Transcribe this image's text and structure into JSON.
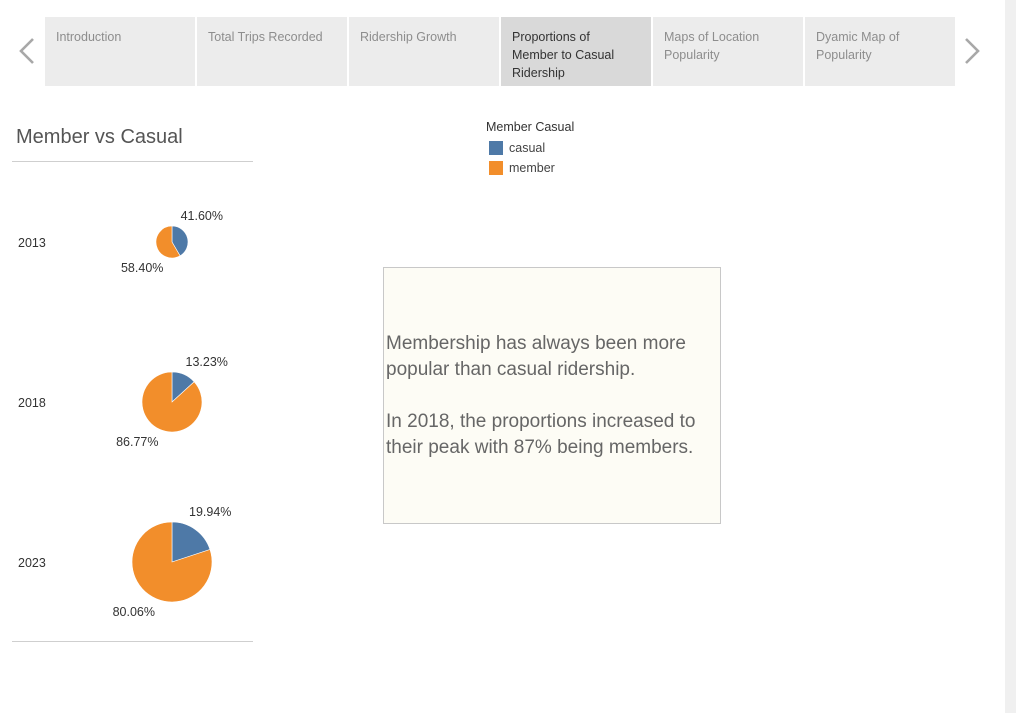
{
  "story": {
    "tabs": [
      {
        "label": "Introduction",
        "active": false
      },
      {
        "label": "Total Trips Recorded",
        "active": false
      },
      {
        "label": "Ridership Growth",
        "active": false
      },
      {
        "label": "Proportions of Member to Casual Ridership",
        "active": true
      },
      {
        "label": "Maps of Location Popularity",
        "active": false
      },
      {
        "label": "Dyamic Map of Popularity",
        "active": false
      }
    ],
    "prev_icon": "chevron-left-icon",
    "next_icon": "chevron-right-icon"
  },
  "panel": {
    "title": "Member vs Casual"
  },
  "legend": {
    "title": "Member Casual",
    "items": [
      {
        "label": "casual",
        "color": "#4e79a7"
      },
      {
        "label": "member",
        "color": "#f28e2b"
      }
    ]
  },
  "note": {
    "paragraph_1": "Membership has always been more popular than casual ridership.",
    "paragraph_2": "In 2018, the proportions increased to their peak with 87% being members."
  },
  "chart_data": {
    "type": "pie",
    "title": "Member vs Casual",
    "categories": [
      "casual",
      "member"
    ],
    "colors": {
      "casual": "#4e79a7",
      "member": "#f28e2b"
    },
    "pies": [
      {
        "year": "2013",
        "casual": 41.6,
        "member": 58.4,
        "casual_label": "41.60%",
        "member_label": "58.40%",
        "relative_size": 0.4
      },
      {
        "year": "2018",
        "casual": 13.23,
        "member": 86.77,
        "casual_label": "13.23%",
        "member_label": "86.77%",
        "relative_size": 0.75
      },
      {
        "year": "2023",
        "casual": 19.94,
        "member": 80.06,
        "casual_label": "19.94%",
        "member_label": "80.06%",
        "relative_size": 1.0
      }
    ],
    "legend_position": "top-center"
  }
}
